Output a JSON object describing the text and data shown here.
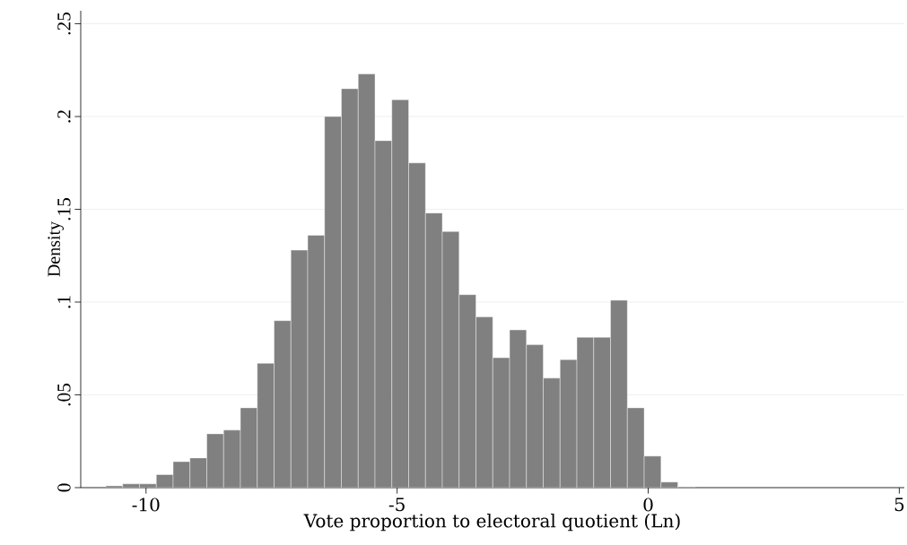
{
  "chart_data": {
    "type": "histogram",
    "xlabel": "Vote proportion to electoral quotient (Ln)",
    "ylabel": "Density",
    "bins": [
      -10.8,
      -10.465,
      -10.13,
      -9.795,
      -9.46,
      -9.125,
      -8.79,
      -8.455,
      -8.12,
      -7.785,
      -7.45,
      -7.115,
      -6.78,
      -6.445,
      -6.11,
      -5.775,
      -5.44,
      -5.105,
      -4.77,
      -4.435,
      -4.1,
      -3.765,
      -3.43,
      -3.095,
      -2.76,
      -2.425,
      -2.09,
      -1.755,
      -1.42,
      -1.085,
      -0.75,
      -0.415,
      -0.08,
      0.255,
      0.59,
      0.925
    ],
    "values": [
      0.001,
      0.002,
      0.002,
      0.007,
      0.014,
      0.016,
      0.029,
      0.031,
      0.043,
      0.067,
      0.09,
      0.128,
      0.136,
      0.2,
      0.215,
      0.223,
      0.187,
      0.209,
      0.175,
      0.148,
      0.138,
      0.104,
      0.092,
      0.07,
      0.085,
      0.077,
      0.059,
      0.069,
      0.081,
      0.081,
      0.101,
      0.043,
      0.017,
      0.003,
      0.0005
    ],
    "color": "#808080",
    "xlim": [
      -11.3,
      5.1
    ],
    "ylim": [
      0,
      0.257
    ],
    "xticks": [
      -10,
      -5,
      0,
      5
    ],
    "yticks": [
      0,
      {
        "value": 0.05,
        "label": ".05"
      },
      {
        "value": 0.1,
        "label": ".1"
      },
      {
        "value": 0.15,
        "label": ".15"
      },
      {
        "value": 0.2,
        "label": ".2"
      },
      {
        "value": 0.25,
        "label": ".25"
      }
    ],
    "grid": "y"
  }
}
